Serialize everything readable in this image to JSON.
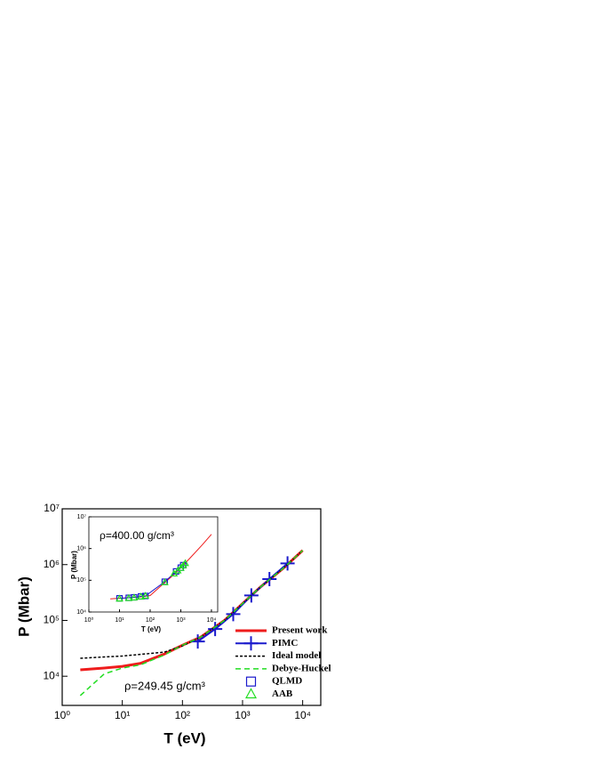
{
  "chart_data": [
    {
      "type": "line",
      "x_label": "T (eV)",
      "y_label": "P (Mbar)",
      "annotation": "ρ=249.45 g/cm³",
      "log_x": true,
      "log_y": true,
      "legend": "lower right",
      "xlim": [
        1,
        20000
      ],
      "ylim": [
        3000,
        10000000
      ],
      "xticks": [
        {
          "value": 1,
          "label": "10⁰"
        },
        {
          "value": 10,
          "label": "10¹"
        },
        {
          "value": 100,
          "label": "10²"
        },
        {
          "value": 1000,
          "label": "10³"
        },
        {
          "value": 10000,
          "label": "10⁴"
        }
      ],
      "yticks": [
        {
          "value": 10000,
          "label": "10⁴"
        },
        {
          "value": 100000,
          "label": "10⁵"
        },
        {
          "value": 1000000,
          "label": "10⁶"
        },
        {
          "value": 10000000,
          "label": "10⁷"
        }
      ],
      "series": [
        {
          "name": "Present work",
          "color": "#ee1c1c",
          "line": "solid",
          "width": 3,
          "marker": null,
          "x": [
            2,
            5,
            10,
            20,
            50,
            100,
            200,
            500,
            1000,
            2000,
            5000,
            10000
          ],
          "values": [
            13000,
            14000,
            15000,
            17000,
            25000,
            36000,
            50000,
            100000,
            200000,
            400000,
            900000,
            1800000
          ]
        },
        {
          "name": "PIMC",
          "color": "#1a1acc",
          "line": "solid",
          "width": 2,
          "marker": "plus",
          "x": [
            180,
            350,
            700,
            1400,
            2800,
            5600
          ],
          "values": [
            42000,
            70000,
            130000,
            280000,
            550000,
            1050000
          ]
        },
        {
          "name": "Ideal model",
          "color": "#000000",
          "line": "dotted",
          "width": 1.5,
          "marker": null,
          "x": [
            2,
            10,
            50,
            100,
            200,
            500,
            1000,
            2000,
            5000,
            10000
          ],
          "values": [
            21000,
            23000,
            27000,
            35000,
            50000,
            100000,
            200000,
            400000,
            900000,
            1800000
          ]
        },
        {
          "name": "Debye-Huckel",
          "color": "#22dd22",
          "line": "dashed",
          "width": 1.5,
          "marker": null,
          "x": [
            2,
            5,
            10,
            20,
            50,
            100,
            200,
            500,
            1000,
            2000,
            5000,
            10000
          ],
          "values": [
            4500,
            11000,
            14000,
            16000,
            24000,
            36000,
            50000,
            100000,
            200000,
            400000,
            900000,
            1800000
          ]
        },
        {
          "name": "QLMD",
          "color": "#1a1acc",
          "line": null,
          "width": 1,
          "marker": "square",
          "x": [],
          "values": []
        },
        {
          "name": "AAB",
          "color": "#22dd22",
          "line": null,
          "width": 1,
          "marker": "triangle",
          "x": [],
          "values": []
        }
      ]
    },
    {
      "type": "line",
      "x_label": "T (eV)",
      "y_label": "P (Mbar)",
      "annotation": "ρ=400.00 g/cm³",
      "log_x": true,
      "log_y": true,
      "xlim": [
        1,
        16000
      ],
      "ylim": [
        10000,
        10000000
      ],
      "xticks": [
        {
          "value": 1,
          "label": "10⁰"
        },
        {
          "value": 10,
          "label": "10¹"
        },
        {
          "value": 100,
          "label": "10²"
        },
        {
          "value": 1000,
          "label": "10³"
        },
        {
          "value": 10000,
          "label": "10⁴"
        }
      ],
      "yticks": [
        {
          "value": 10000,
          "label": "10⁴"
        },
        {
          "value": 100000,
          "label": "10⁵"
        },
        {
          "value": 1000000,
          "label": "10⁶"
        },
        {
          "value": 10000000,
          "label": "10⁷"
        }
      ],
      "series": [
        {
          "name": "Present work",
          "color": "#ee1c1c",
          "line": "solid",
          "width": 1,
          "marker": null,
          "x": [
            5,
            10,
            20,
            50,
            100,
            200,
            500,
            1000,
            2000,
            5000,
            10000
          ],
          "values": [
            26000,
            27000,
            28000,
            30000,
            33000,
            60000,
            130000,
            250000,
            500000,
            1300000,
            2800000
          ]
        },
        {
          "name": "QLMD",
          "color": "#1a1acc",
          "line": "solid",
          "width": 1,
          "marker": "square",
          "x": [
            10,
            20,
            30,
            50,
            70,
            300,
            700,
            1000,
            1200
          ],
          "values": [
            27000,
            28000,
            29000,
            31000,
            32000,
            90000,
            190000,
            250000,
            300000
          ]
        },
        {
          "name": "AAB",
          "color": "#22dd22",
          "line": null,
          "width": 1,
          "marker": "triangle",
          "x": [
            10,
            20,
            30,
            50,
            70,
            300,
            600,
            800,
            1000,
            1200,
            1400
          ],
          "values": [
            26000,
            27000,
            28000,
            30000,
            32000,
            85000,
            160000,
            200000,
            240000,
            290000,
            340000
          ]
        }
      ]
    }
  ]
}
